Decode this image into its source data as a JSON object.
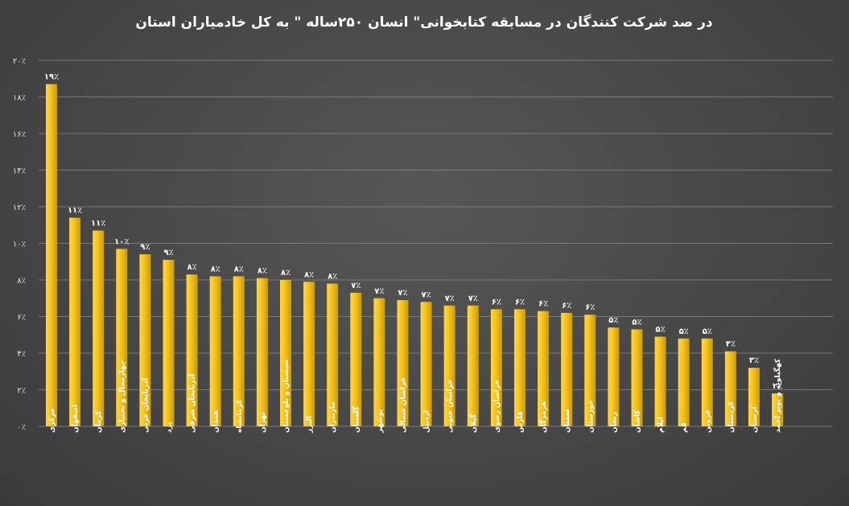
{
  "chart_data": {
    "type": "bar",
    "title": "در صد شرکت کنندگان در مسابقه کتابخوانی\" انسان ۲۵۰ساله \" به کل خادمیاران استان",
    "ylim": [
      0,
      20
    ],
    "ytick_values": [
      0,
      2,
      4,
      6,
      8,
      10,
      12,
      14,
      16,
      18,
      20
    ],
    "ytick_labels": [
      "۰٪",
      "۲٪",
      "۴٪",
      "۶٪",
      "۸٪",
      "۱۰٪",
      "۱۲٪",
      "۱۴٪",
      "۱۶٪",
      "۱۸٪",
      "۲۰٪"
    ],
    "categories": [
      "مرکزی",
      "اصفهان",
      "کرمان",
      "چهارمحال و بختیاری",
      "آذربایجان غربی",
      "یزد",
      "آذربایجان شرقی",
      "همدان",
      "کرمانشاه",
      "تهران",
      "سیستان و بلوچستان",
      "البرز",
      "مازندران",
      "گلستان",
      "بوشهر",
      "خراسان شمالی",
      "اردبیل",
      "خراسان جنوبی",
      "گیلان",
      "خراسان رضوی",
      "فارس",
      "هرمزگان",
      "سمنان",
      "خوزستان",
      "زنجان",
      "کاشان",
      "ایلام",
      "قم",
      "قزوین",
      "کردستان",
      "لرستان",
      "کهگیلویه و بویر احمد"
    ],
    "values": [
      18.7,
      11.4,
      10.7,
      9.7,
      9.4,
      9.1,
      8.3,
      8.2,
      8.2,
      8.1,
      8.0,
      7.9,
      7.8,
      7.3,
      7.0,
      6.9,
      6.8,
      6.6,
      6.6,
      6.4,
      6.4,
      6.3,
      6.2,
      6.1,
      5.4,
      5.3,
      4.9,
      4.8,
      4.8,
      4.1,
      3.2,
      1.8
    ],
    "data_labels": [
      "۱۹٪",
      "۱۱٪",
      "۱۱٪",
      "۱۰٪",
      "۹٪",
      "۹٪",
      "۸٪",
      "۸٪",
      "۸٪",
      "۸٪",
      "۸٪",
      "۸٪",
      "۸٪",
      "۷٪",
      "۷٪",
      "۷٪",
      "۷٪",
      "۷٪",
      "۷٪",
      "۶٪",
      "۶٪",
      "۶٪",
      "۶٪",
      "۶٪",
      "۵٪",
      "۵٪",
      "۵٪",
      "۵٪",
      "۵٪",
      "۴٪",
      "۳٪",
      "۲٪"
    ],
    "grid": true,
    "bar_color": "#f5c21b"
  }
}
